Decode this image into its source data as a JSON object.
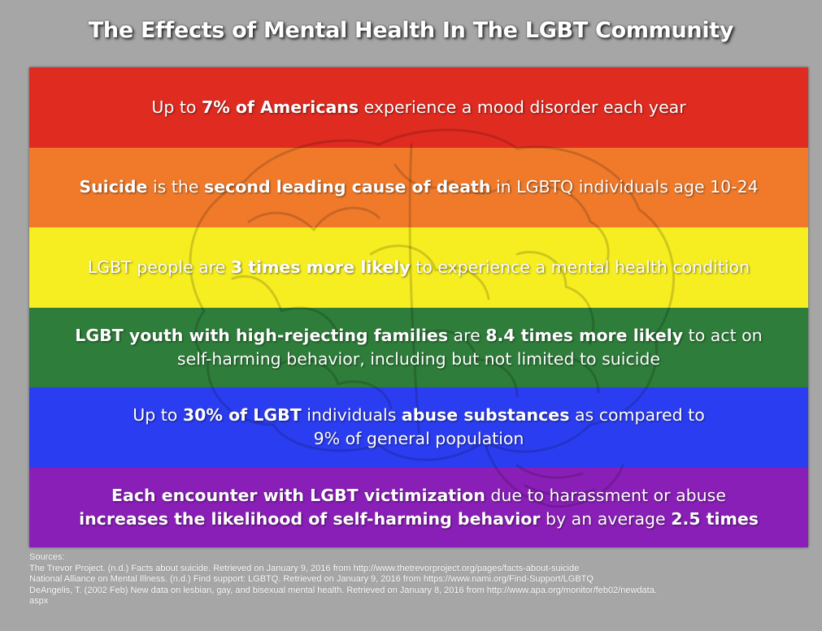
{
  "title": "The Effects of Mental Health In The LGBT Community",
  "colors": {
    "background": "#a6a6a6",
    "red": "#e02b20",
    "orange": "#f07a2a",
    "yellow": "#f6ee21",
    "green": "#2e7d3a",
    "blue": "#2b3df0",
    "purple": "#8a1fb8"
  },
  "bands": [
    {
      "color": "#e02b20",
      "line1": [
        {
          "t": "Up to ",
          "b": false
        },
        {
          "t": "7% of Americans",
          "b": true
        },
        {
          "t": " experience a mood disorder each year",
          "b": false
        }
      ],
      "line2": []
    },
    {
      "color": "#f07a2a",
      "line1": [
        {
          "t": "Suicide",
          "b": true
        },
        {
          "t": " is the ",
          "b": false
        },
        {
          "t": "second leading cause of death",
          "b": true
        },
        {
          "t": " in LGBTQ individuals age 10-24",
          "b": false
        }
      ],
      "line2": []
    },
    {
      "color": "#f6ee21",
      "line1": [
        {
          "t": "LGBT people are ",
          "b": false
        },
        {
          "t": "3 times more likely",
          "b": true
        },
        {
          "t": " to experience a mental health condition",
          "b": false
        }
      ],
      "line2": []
    },
    {
      "color": "#2e7d3a",
      "line1": [
        {
          "t": "LGBT youth with high-rejecting families",
          "b": true
        },
        {
          "t": " are ",
          "b": false
        },
        {
          "t": "8.4 times more likely",
          "b": true
        },
        {
          "t": " to act on",
          "b": false
        }
      ],
      "line2": [
        {
          "t": "self-harming behavior, including but not limited to suicide",
          "b": false
        }
      ]
    },
    {
      "color": "#2b3df0",
      "line1": [
        {
          "t": "Up to ",
          "b": false
        },
        {
          "t": "30% of LGBT",
          "b": true
        },
        {
          "t": " individuals ",
          "b": false
        },
        {
          "t": "abuse substances",
          "b": true
        },
        {
          "t": " as compared to",
          "b": false
        }
      ],
      "line2": [
        {
          "t": "9% of general population",
          "b": false
        }
      ]
    },
    {
      "color": "#8a1fb8",
      "line1": [
        {
          "t": "Each encounter with LGBT victimization",
          "b": true
        },
        {
          "t": " due to harassment or abuse",
          "b": false
        }
      ],
      "line2": [
        {
          "t": "increases the likelihood of self-harming behavior",
          "b": true
        },
        {
          "t": " by an average ",
          "b": false
        },
        {
          "t": "2.5 times",
          "b": true
        }
      ]
    }
  ],
  "sources": {
    "heading": "Sources:",
    "items": [
      "The Trevor Project. (n.d.) Facts about suicide.  Retrieved on January 9, 2016 from http://www.thetrevorproject.org/pages/facts-about-suicide",
      "National Alliance on Mental Illness. (n.d.) Find support: LGBTQ. Retrieved on January 9, 2016 from https://www.nami.org/Find-Support/LGBTQ",
      "DeAngelis, T. (2002 Feb) New data on lesbian, gay, and bisexual mental health. Retrieved on January 8, 2016 from http://www.apa.org/monitor/feb02/newdata.",
      "aspx"
    ]
  }
}
